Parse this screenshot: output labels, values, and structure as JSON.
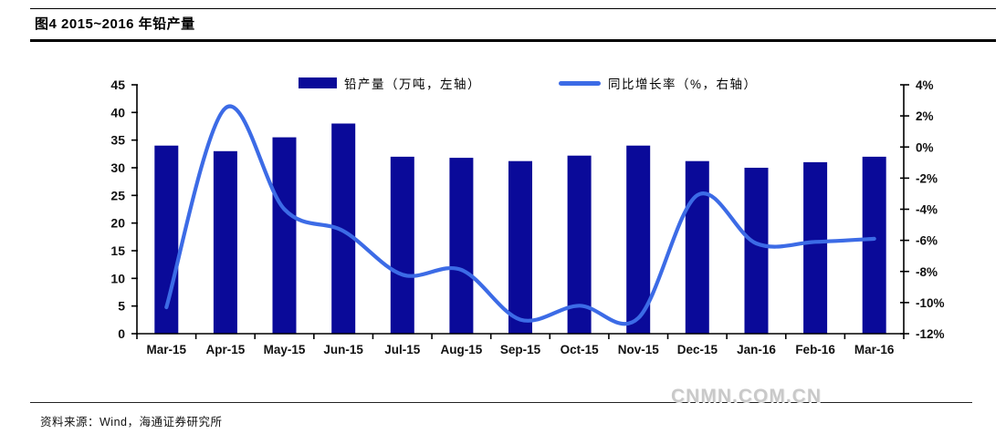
{
  "header": {
    "title": "图4  2015~2016 年铅产量"
  },
  "legend": {
    "bar_label": "铅产量（万吨，左轴）",
    "line_label": "同比增长率（%，右轴）"
  },
  "footer": {
    "source": "资料来源：Wind，海通证券研究所",
    "watermark": "CNMN.COM.CN"
  },
  "colors": {
    "bar": "#0a0a99",
    "line": "#3c6be6",
    "axis": "#000000",
    "tick_text": "#111111",
    "watermark": "#c9c9c9"
  },
  "chart_data": {
    "type": "bar",
    "subtype": "bar+line combo, dual axis",
    "title": "图4 2015~2016 年铅产量",
    "categories": [
      "Mar-15",
      "Apr-15",
      "May-15",
      "Jun-15",
      "Jul-15",
      "Aug-15",
      "Sep-15",
      "Oct-15",
      "Nov-15",
      "Dec-15",
      "Jan-16",
      "Feb-16",
      "Mar-16"
    ],
    "series": [
      {
        "name": "铅产量（万吨，左轴）",
        "type": "bar",
        "axis": "left",
        "values": [
          34,
          33,
          35.5,
          38,
          32,
          31.8,
          31.2,
          32.2,
          34,
          31.2,
          30,
          31,
          32
        ]
      },
      {
        "name": "同比增长率（%，右轴）",
        "type": "line",
        "axis": "right",
        "values": [
          -10.3,
          2.5,
          -4.0,
          -5.4,
          -8.2,
          -7.9,
          -11.1,
          -10.2,
          -11.0,
          -3.1,
          -6.2,
          -6.1,
          -5.9
        ]
      }
    ],
    "left_axis": {
      "label": "万吨",
      "min": 0,
      "max": 45,
      "step": 5,
      "ticks": [
        "45",
        "40",
        "35",
        "30",
        "25",
        "20",
        "15",
        "10",
        "5",
        "0"
      ]
    },
    "right_axis": {
      "label": "%",
      "min": -12,
      "max": 4,
      "step": 2,
      "ticks": [
        "4%",
        "2%",
        "0%",
        "-2%",
        "-4%",
        "-6%",
        "-8%",
        "-10%",
        "-12%"
      ]
    },
    "grid": false,
    "legend_position": "top"
  }
}
